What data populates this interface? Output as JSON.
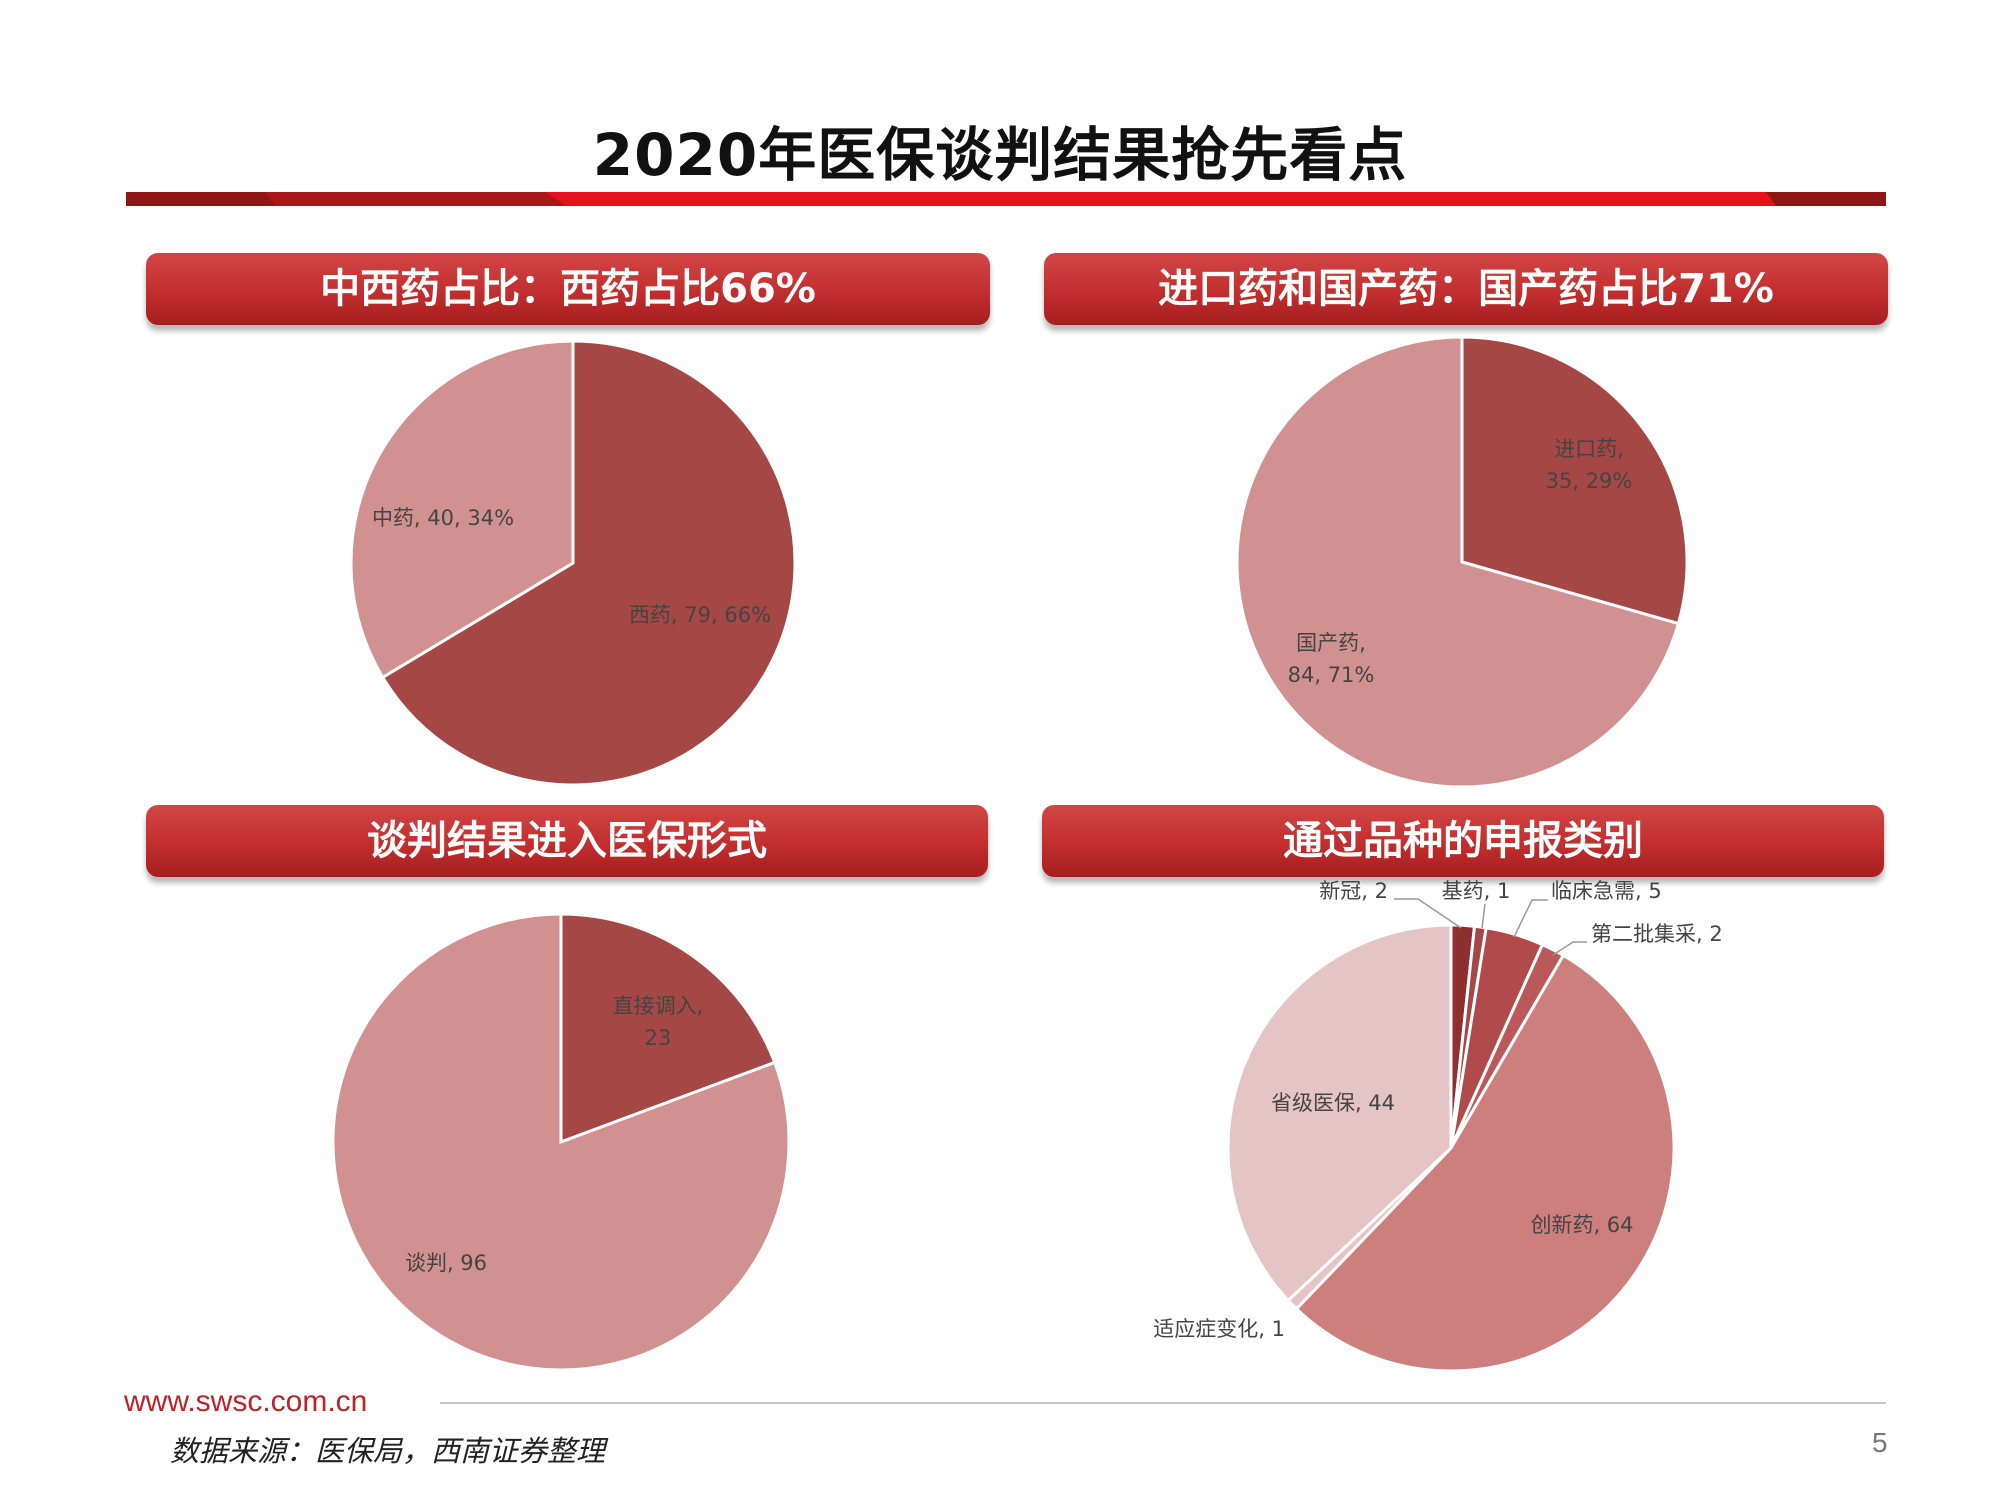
{
  "page": {
    "title": "2020年医保谈判结果抢先看点",
    "website": "www.swsc.com.cn",
    "source": "数据来源：医保局，西南证券整理",
    "page_number": "5"
  },
  "colors": {
    "dark": "#a44745",
    "medium": "#d19190",
    "light": "#e4c4c4",
    "salmon": "#cc7f7d",
    "banner": "#c63434",
    "accent": "#e8101b"
  },
  "chart_data": [
    {
      "type": "pie",
      "title": "中西药占比：西药占比66%",
      "slices": [
        {
          "name": "西药",
          "value": 79,
          "percent": "66%",
          "label": "西药, 79, 66%"
        },
        {
          "name": "中药",
          "value": 40,
          "percent": "34%",
          "label": "中药, 40, 34%"
        }
      ]
    },
    {
      "type": "pie",
      "title": "进口药和国产药：国产药占比71%",
      "slices": [
        {
          "name": "进口药",
          "value": 35,
          "percent": "29%",
          "label_line1": "进口药,",
          "label_line2": "35, 29%"
        },
        {
          "name": "国产药",
          "value": 84,
          "percent": "71%",
          "label_line1": "国产药,",
          "label_line2": "84, 71%"
        }
      ]
    },
    {
      "type": "pie",
      "title": "谈判结果进入医保形式",
      "slices": [
        {
          "name": "直接调入",
          "value": 23,
          "label_line1": "直接调入,",
          "label_line2": "23"
        },
        {
          "name": "谈判",
          "value": 96,
          "label": "谈判, 96"
        }
      ]
    },
    {
      "type": "pie",
      "title": "通过品种的申报类别",
      "slices": [
        {
          "name": "新冠",
          "value": 2,
          "label": "新冠, 2"
        },
        {
          "name": "基药",
          "value": 1,
          "label": "基药, 1"
        },
        {
          "name": "临床急需",
          "value": 5,
          "label": "临床急需, 5"
        },
        {
          "name": "第二批集采",
          "value": 2,
          "label": "第二批集采, 2"
        },
        {
          "name": "创新药",
          "value": 64,
          "label": "创新药, 64"
        },
        {
          "name": "适应症变化",
          "value": 1,
          "label": "适应症变化, 1"
        },
        {
          "name": "省级医保",
          "value": 44,
          "label": "省级医保, 44"
        }
      ]
    }
  ]
}
